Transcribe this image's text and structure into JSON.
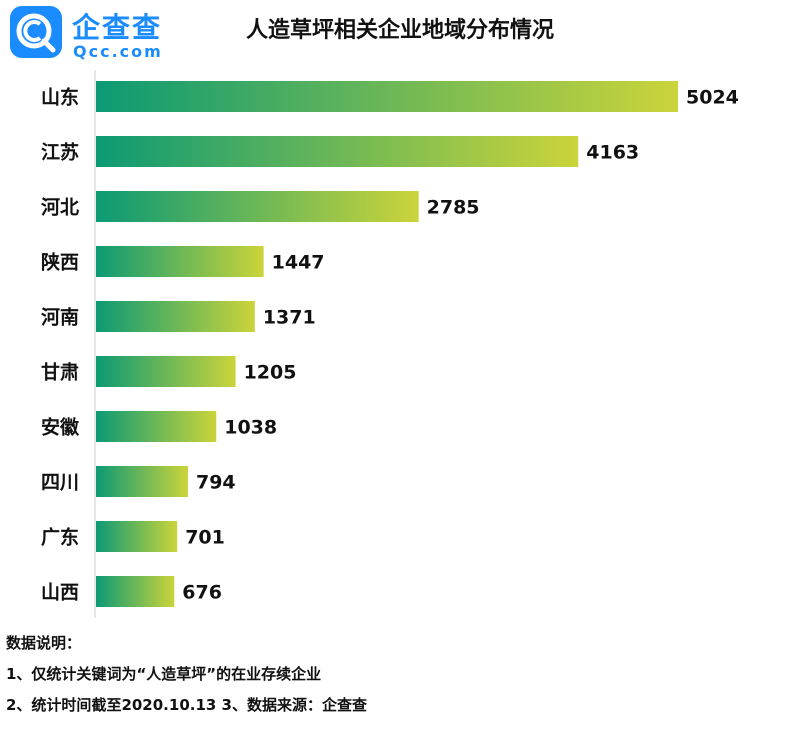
{
  "logo": {
    "name": "企查查",
    "url": "Qcc.com",
    "colors": {
      "brand": "#1a8cff"
    },
    "icon": "qcc-logo-icon"
  },
  "chart_data": {
    "type": "bar",
    "orientation": "horizontal",
    "title": "人造草坪相关企业地域分布情况",
    "categories": [
      "山东",
      "江苏",
      "河北",
      "陕西",
      "河南",
      "甘肃",
      "安徽",
      "四川",
      "广东",
      "山西"
    ],
    "values": [
      5024,
      4163,
      2785,
      1447,
      1371,
      1205,
      1038,
      794,
      701,
      676
    ],
    "value_labels": [
      "5024",
      "4163",
      "2785",
      "1447",
      "1371",
      "1205",
      "1038",
      "794",
      "701",
      "676"
    ],
    "xlim": [
      0,
      5024
    ],
    "grid": false,
    "colors": {
      "gradient_start": "#0c9a74",
      "gradient_end": "#cbd43a",
      "axis": "#cfcfcf"
    }
  },
  "notes": {
    "heading": "数据说明：",
    "line1": "1、仅统计关键词为“人造草坪”的在业存续企业",
    "line2": "2、统计时间截至2020.10.13  3、数据来源：企查查"
  }
}
